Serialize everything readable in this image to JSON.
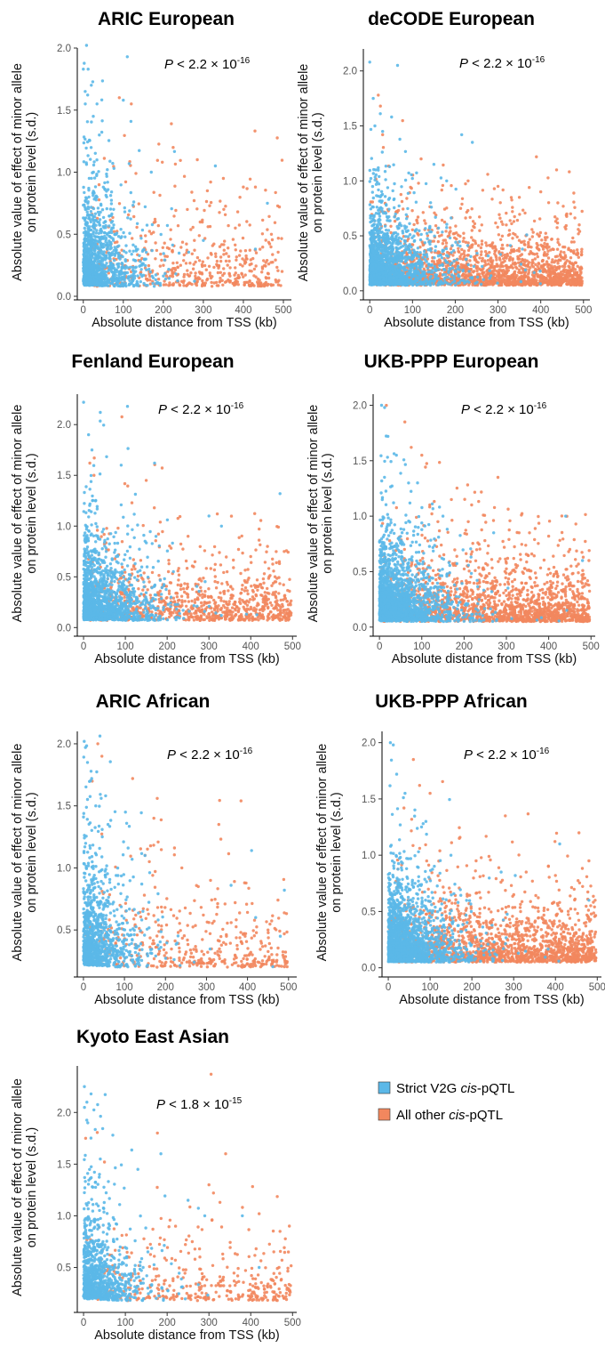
{
  "colors": {
    "strict": "#5BB8E8",
    "other": "#F2875E"
  },
  "legend": [
    {
      "prefix": "Strict V2G ",
      "italic": "cis",
      "suffix": "-pQTL",
      "color_key": "strict"
    },
    {
      "prefix": "All other ",
      "italic": "cis",
      "suffix": "-pQTL",
      "color_key": "other"
    }
  ],
  "chart_data": [
    {
      "type": "scatter",
      "title": "ARIC European",
      "xlabel": "Absolute distance from TSS (kb)",
      "ylabel": [
        "Absolute value of effect of minor allele",
        "on protein level (s.d.)"
      ],
      "xlim": [
        -15,
        520
      ],
      "ylim": [
        0,
        2.0
      ],
      "xticks": [
        0,
        100,
        200,
        300,
        400,
        500
      ],
      "xtick_labels": [
        "0",
        "100",
        "200",
        "300",
        "400",
        "500"
      ],
      "yticks": [
        0,
        0.5,
        1.0,
        1.5,
        2.0
      ],
      "ytick_labels": [
        "0.0",
        "0.5",
        "1.0",
        "1.5",
        "2.0"
      ],
      "pvalue": {
        "symbol": "P",
        "op": "<",
        "mantissa": "2.2",
        "times": "×",
        "base": "10",
        "exponent": "-16"
      },
      "density": {
        "strict_n": 1200,
        "other_n": 520,
        "min": 0.08,
        "scale": 0.28,
        "sdecay": 45,
        "max_effect": 1.93,
        "other_spread": "even"
      },
      "series": [
        {
          "name": "Strict V2G cis-pQTL",
          "color_key": "strict",
          "highlights": [
            [
              0,
              1.83
            ],
            [
              12,
              1.83
            ],
            [
              110,
              1.93
            ],
            [
              100,
              1.58
            ],
            [
              5,
              1.55
            ],
            [
              25,
              1.45
            ],
            [
              20,
              1.7
            ],
            [
              40,
              1.3
            ],
            [
              170,
              1.0
            ],
            [
              330,
              1.05
            ],
            [
              460,
              0.75
            ],
            [
              60,
              1.02
            ],
            [
              210,
              0.57
            ],
            [
              300,
              0.45
            ],
            [
              430,
              0.38
            ]
          ]
        },
        {
          "name": "All other cis-pQTL",
          "color_key": "other",
          "highlights": [
            [
              90,
              1.6
            ],
            [
              120,
              1.55
            ],
            [
              220,
              1.39
            ],
            [
              285,
              1.1
            ],
            [
              310,
              0.85
            ],
            [
              350,
              0.95
            ],
            [
              400,
              0.88
            ],
            [
              430,
              0.88
            ],
            [
              490,
              0.72
            ],
            [
              260,
              0.7
            ],
            [
              380,
              0.55
            ],
            [
              180,
              0.6
            ],
            [
              470,
              0.5
            ]
          ]
        }
      ]
    },
    {
      "type": "scatter",
      "title": "deCODE European",
      "xlabel": "Absolute distance from TSS (kb)",
      "ylabel": [
        "Absolute value of effect of minor allele",
        "on protein level (s.d.)"
      ],
      "xlim": [
        -15,
        515
      ],
      "ylim": [
        -0.05,
        2.2
      ],
      "xticks": [
        0,
        100,
        200,
        300,
        400,
        500
      ],
      "xtick_labels": [
        "0",
        "100",
        "200",
        "300",
        "400",
        "500"
      ],
      "yticks": [
        0,
        0.5,
        1.0,
        1.5,
        2.0
      ],
      "ytick_labels": [
        "0.0",
        "0.5",
        "1.0",
        "1.5",
        "2.0"
      ],
      "pvalue": {
        "symbol": "P",
        "op": "<",
        "mantissa": "2.2",
        "times": "×",
        "base": "10",
        "exponent": "-16"
      },
      "density": {
        "strict_n": 1800,
        "other_n": 1900,
        "min": 0.05,
        "scale": 0.22,
        "sdecay": 55,
        "max_effect": 2.1,
        "other_spread": "even"
      },
      "series": [
        {
          "name": "Strict V2G cis-pQTL",
          "color_key": "strict",
          "highlights": [
            [
              0,
              2.08
            ],
            [
              65,
              2.05
            ],
            [
              8,
              1.75
            ],
            [
              12,
              1.5
            ],
            [
              30,
              1.45
            ],
            [
              150,
              1.15
            ],
            [
              215,
              1.42
            ],
            [
              240,
              1.35
            ],
            [
              180,
              1.0
            ]
          ]
        },
        {
          "name": "All other cis-pQTL",
          "color_key": "other",
          "highlights": [
            [
              20,
              1.78
            ],
            [
              25,
              1.68
            ],
            [
              30,
              1.42
            ],
            [
              120,
              1.2
            ],
            [
              230,
              1.0
            ],
            [
              300,
              0.95
            ],
            [
              350,
              0.85
            ],
            [
              400,
              0.9
            ],
            [
              440,
              0.8
            ],
            [
              470,
              0.7
            ],
            [
              490,
              0.6
            ]
          ]
        }
      ]
    },
    {
      "type": "scatter",
      "title": "Fenland European",
      "xlabel": "Absolute distance from TSS (kb)",
      "ylabel": [
        "Absolute value of effect of minor allele",
        "on protein level (s.d.)"
      ],
      "xlim": [
        -15,
        510
      ],
      "ylim": [
        -0.05,
        2.3
      ],
      "xticks": [
        0,
        100,
        200,
        300,
        400,
        500
      ],
      "xtick_labels": [
        "0",
        "100",
        "200",
        "300",
        "400",
        "500"
      ],
      "yticks": [
        0,
        0.5,
        1.0,
        1.5,
        2.0
      ],
      "ytick_labels": [
        "0.0",
        "0.5",
        "1.0",
        "1.5",
        "2.0"
      ],
      "pvalue": {
        "symbol": "P",
        "op": "<",
        "mantissa": "2.2",
        "times": "×",
        "base": "10",
        "exponent": "-16"
      },
      "density": {
        "strict_n": 1500,
        "other_n": 950,
        "min": 0.07,
        "scale": 0.26,
        "sdecay": 55,
        "max_effect": 2.25,
        "other_spread": "even"
      },
      "series": [
        {
          "name": "Strict V2G cis-pQTL",
          "color_key": "strict",
          "highlights": [
            [
              0,
              2.22
            ],
            [
              40,
              2.12
            ],
            [
              105,
              2.18
            ],
            [
              12,
              1.9
            ],
            [
              20,
              1.75
            ],
            [
              90,
              1.6
            ],
            [
              170,
              1.62
            ],
            [
              300,
              1.1
            ],
            [
              470,
              1.32
            ],
            [
              330,
              1.0
            ]
          ]
        },
        {
          "name": "All other cis-pQTL",
          "color_key": "other",
          "highlights": [
            [
              15,
              1.62
            ],
            [
              25,
              1.5
            ],
            [
              150,
              1.45
            ],
            [
              320,
              1.12
            ],
            [
              250,
              0.9
            ],
            [
              400,
              0.7
            ],
            [
              440,
              0.8
            ],
            [
              480,
              0.75
            ]
          ]
        }
      ]
    },
    {
      "type": "scatter",
      "title": "UKB-PPP European",
      "xlabel": "Absolute distance from TSS (kb)",
      "ylabel": [
        "Absolute value of effect of minor allele",
        "on protein level (s.d.)"
      ],
      "xlim": [
        -15,
        510
      ],
      "ylim": [
        -0.05,
        2.1
      ],
      "xticks": [
        0,
        100,
        200,
        300,
        400,
        500
      ],
      "xtick_labels": [
        "0",
        "100",
        "200",
        "300",
        "400",
        "500"
      ],
      "yticks": [
        0,
        0.5,
        1.0,
        1.5,
        2.0
      ],
      "ytick_labels": [
        "0.0",
        "0.5",
        "1.0",
        "1.5",
        "2.0"
      ],
      "pvalue": {
        "symbol": "P",
        "op": "<",
        "mantissa": "2.2",
        "times": "×",
        "base": "10",
        "exponent": "-16"
      },
      "density": {
        "strict_n": 1900,
        "other_n": 1700,
        "min": 0.05,
        "scale": 0.24,
        "sdecay": 55,
        "max_effect": 2.0,
        "other_spread": "even"
      },
      "series": [
        {
          "name": "Strict V2G cis-pQTL",
          "color_key": "strict",
          "highlights": [
            [
              5,
              2.0
            ],
            [
              12,
              1.98
            ],
            [
              20,
              1.72
            ],
            [
              40,
              1.55
            ],
            [
              90,
              1.3
            ],
            [
              150,
              1.0
            ],
            [
              270,
              0.85
            ],
            [
              440,
              1.0
            ],
            [
              480,
              0.6
            ]
          ]
        },
        {
          "name": "All other cis-pQTL",
          "color_key": "other",
          "highlights": [
            [
              60,
              1.85
            ],
            [
              75,
              1.62
            ],
            [
              100,
              1.55
            ],
            [
              280,
              1.35
            ],
            [
              170,
              1.15
            ],
            [
              210,
              0.95
            ],
            [
              330,
              0.85
            ],
            [
              400,
              0.82
            ],
            [
              450,
              0.7
            ],
            [
              495,
              0.6
            ]
          ]
        }
      ]
    },
    {
      "type": "scatter",
      "title": "ARIC African",
      "xlabel": "Absolute distance from TSS (kb)",
      "ylabel": [
        "Absolute value of effect of minor allele",
        "on protein level (s.d.)"
      ],
      "xlim": [
        -15,
        520
      ],
      "ylim": [
        0.15,
        2.1
      ],
      "xticks": [
        0,
        100,
        200,
        300,
        400,
        500
      ],
      "xtick_labels": [
        "0",
        "100",
        "200",
        "300",
        "400",
        "500"
      ],
      "yticks": [
        0.5,
        1.0,
        1.5,
        2.0
      ],
      "ytick_labels": [
        "0.5",
        "1.0",
        "1.5",
        "2.0"
      ],
      "pvalue": {
        "symbol": "P",
        "op": "<",
        "mantissa": "2.2",
        "times": "×",
        "base": "10",
        "exponent": "-16"
      },
      "density": {
        "strict_n": 1050,
        "other_n": 420,
        "min": 0.2,
        "scale": 0.3,
        "sdecay": 45,
        "max_effect": 2.05,
        "other_spread": "even"
      },
      "series": [
        {
          "name": "Strict V2G cis-pQTL",
          "color_key": "strict",
          "highlights": [
            [
              2,
              2.02
            ],
            [
              5,
              1.97
            ],
            [
              10,
              1.85
            ],
            [
              20,
              1.72
            ],
            [
              30,
              1.5
            ],
            [
              60,
              1.35
            ],
            [
              150,
              1.1
            ],
            [
              410,
              1.14
            ],
            [
              490,
              0.82
            ],
            [
              360,
              0.86
            ],
            [
              420,
              0.6
            ],
            [
              480,
              0.45
            ]
          ]
        },
        {
          "name": "All other cis-pQTL",
          "color_key": "other",
          "highlights": [
            [
              35,
              2.0
            ],
            [
              45,
              1.9
            ],
            [
              120,
              1.72
            ],
            [
              180,
              1.56
            ],
            [
              330,
              1.35
            ],
            [
              240,
              1.0
            ],
            [
              280,
              0.85
            ],
            [
              310,
              0.9
            ],
            [
              370,
              0.72
            ],
            [
              450,
              0.5
            ]
          ]
        }
      ]
    },
    {
      "type": "scatter",
      "title": "UKB-PPP African",
      "xlabel": "Absolute distance from TSS (kb)",
      "ylabel": [
        "Absolute value of effect of minor allele",
        "on protein level (s.d.)"
      ],
      "xlim": [
        -15,
        510
      ],
      "ylim": [
        -0.05,
        2.1
      ],
      "xticks": [
        0,
        100,
        200,
        300,
        400,
        500
      ],
      "xtick_labels": [
        "0",
        "100",
        "200",
        "300",
        "400",
        "500"
      ],
      "yticks": [
        0,
        0.5,
        1.0,
        1.5,
        2.0
      ],
      "ytick_labels": [
        "0.0",
        "0.5",
        "1.0",
        "1.5",
        "2.0"
      ],
      "pvalue": {
        "symbol": "P",
        "op": "<",
        "mantissa": "2.2",
        "times": "×",
        "base": "10",
        "exponent": "-16"
      },
      "density": {
        "strict_n": 1900,
        "other_n": 1700,
        "min": 0.05,
        "scale": 0.24,
        "sdecay": 55,
        "max_effect": 2.0,
        "other_spread": "even"
      },
      "series": [
        {
          "name": "Strict V2G cis-pQTL",
          "color_key": "strict",
          "highlights": [
            [
              5,
              2.0
            ],
            [
              12,
              1.98
            ],
            [
              20,
              1.72
            ],
            [
              40,
              1.55
            ],
            [
              90,
              1.3
            ],
            [
              150,
              1.0
            ],
            [
              270,
              0.85
            ],
            [
              410,
              1.1
            ],
            [
              480,
              0.6
            ]
          ]
        },
        {
          "name": "All other cis-pQTL",
          "color_key": "other",
          "highlights": [
            [
              60,
              1.85
            ],
            [
              75,
              1.62
            ],
            [
              100,
              1.55
            ],
            [
              280,
              1.35
            ],
            [
              170,
              1.15
            ],
            [
              210,
              0.95
            ],
            [
              330,
              0.85
            ],
            [
              400,
              0.82
            ],
            [
              480,
              0.95
            ],
            [
              495,
              0.6
            ]
          ]
        }
      ]
    },
    {
      "type": "scatter",
      "title": "Kyoto East Asian",
      "xlabel": "Absolute distance from TSS (kb)",
      "ylabel": [
        "Absolute value of effect of minor allele",
        "on protein level (s.d.)"
      ],
      "xlim": [
        -15,
        510
      ],
      "ylim": [
        0.1,
        2.45
      ],
      "xticks": [
        0,
        100,
        200,
        300,
        400,
        500
      ],
      "xtick_labels": [
        "0",
        "100",
        "200",
        "300",
        "400",
        "500"
      ],
      "yticks": [
        0.5,
        1.0,
        1.5,
        2.0
      ],
      "ytick_labels": [
        "0.5",
        "1.0",
        "1.5",
        "2.0"
      ],
      "pvalue": {
        "symbol": "P",
        "op": "<",
        "mantissa": "1.8",
        "times": "×",
        "base": "10",
        "exponent": "-15"
      },
      "density": {
        "strict_n": 950,
        "other_n": 380,
        "min": 0.18,
        "scale": 0.3,
        "sdecay": 45,
        "max_effect": 2.25,
        "other_spread": "even"
      },
      "series": [
        {
          "name": "Strict V2G cis-pQTL",
          "color_key": "strict",
          "highlights": [
            [
              2,
              2.25
            ],
            [
              8,
              2.1
            ],
            [
              18,
              2.18
            ],
            [
              10,
              1.9
            ],
            [
              40,
              1.55
            ],
            [
              70,
              1.78
            ],
            [
              130,
              1.45
            ],
            [
              185,
              1.6
            ],
            [
              250,
              1.15
            ],
            [
              290,
              1.0
            ],
            [
              380,
              1.0
            ],
            [
              420,
              0.5
            ]
          ]
        },
        {
          "name": "All other cis-pQTL",
          "color_key": "other",
          "highlights": [
            [
              5,
              1.75
            ],
            [
              50,
              1.52
            ],
            [
              305,
              2.37
            ],
            [
              340,
              1.6
            ],
            [
              300,
              1.3
            ],
            [
              420,
              1.02
            ],
            [
              470,
              0.85
            ],
            [
              490,
              0.65
            ],
            [
              220,
              0.9
            ],
            [
              260,
              0.75
            ]
          ]
        }
      ]
    }
  ]
}
